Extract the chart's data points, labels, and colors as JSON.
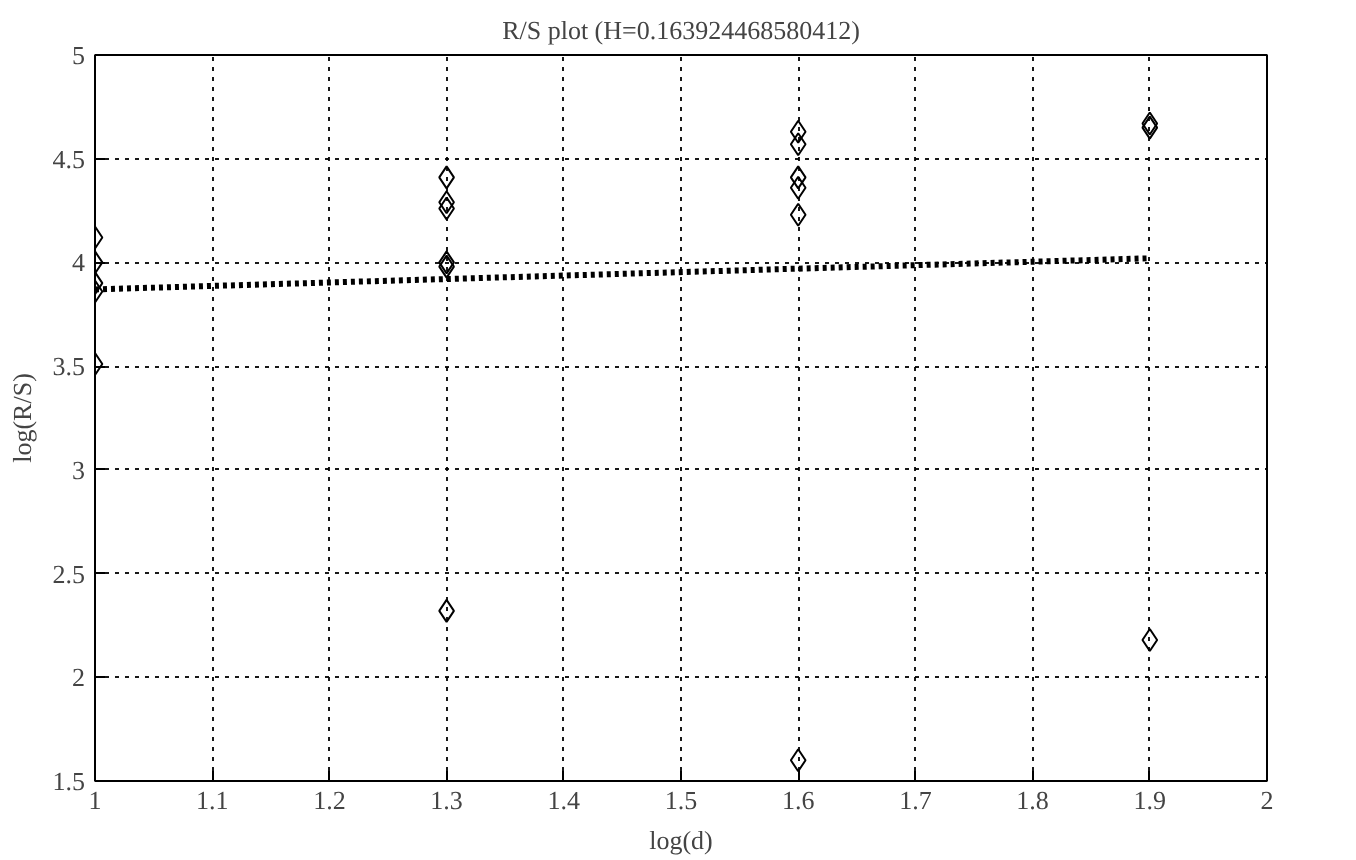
{
  "chart_data": {
    "type": "scatter",
    "title": "R/S plot (H=0.163924468580412)",
    "xlabel": "log(d)",
    "ylabel": "log(R/S)",
    "series": [
      {
        "color": "#000000",
        "marker": "diamond",
        "x": [
          1,
          1,
          1,
          1,
          1,
          1.3,
          1.3,
          1.3,
          1.3,
          1.3,
          1.3,
          1.6,
          1.6,
          1.6,
          1.6,
          1.6,
          1.6,
          1.9,
          1.9,
          1.9
        ],
        "values": [
          4.12,
          4.0,
          3.9,
          3.86,
          3.51,
          4.41,
          4.29,
          4.26,
          4.0,
          3.98,
          2.32,
          4.63,
          4.57,
          4.41,
          4.36,
          4.23,
          1.6,
          4.67,
          4.65,
          2.18
        ]
      },
      {
        "type": "line",
        "color": "#000000",
        "line_style": "dotted",
        "marker": "none",
        "x": [
          1,
          1.9
        ],
        "values": [
          3.87,
          4.02
        ]
      }
    ],
    "xlim": [
      1,
      2
    ],
    "xticks": [
      1,
      1.1,
      1.2,
      1.3,
      1.4,
      1.5,
      1.6,
      1.7,
      1.8,
      1.9,
      2
    ],
    "ylim": [
      1.5,
      5
    ],
    "yticks": [
      1.5,
      2,
      2.5,
      3,
      3.5,
      4,
      4.5,
      5
    ],
    "grid": true
  }
}
